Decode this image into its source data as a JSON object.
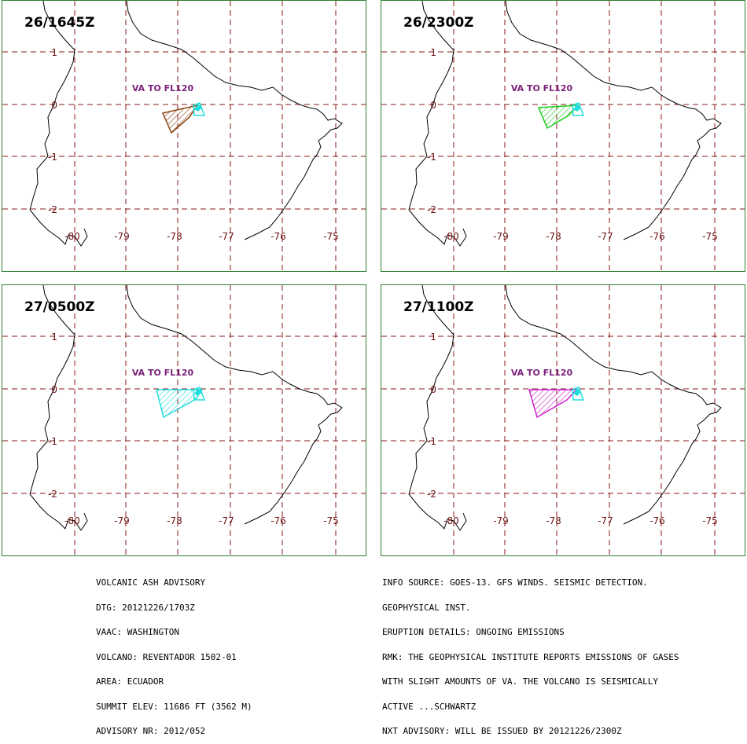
{
  "panels": [
    {
      "title": "26/1645Z",
      "ash_label": "VA TO FL120",
      "ash_color": "#8b4513"
    },
    {
      "title": "26/2300Z",
      "ash_label": "VA TO FL120",
      "ash_color": "#22cc22"
    },
    {
      "title": "27/0500Z",
      "ash_label": "VA TO FL120",
      "ash_color": "#22dddd"
    },
    {
      "title": "27/1100Z",
      "ash_label": "VA TO FL120",
      "ash_color": "#cc22cc"
    }
  ],
  "map": {
    "lat_ticks": [
      "1",
      "0",
      "-1",
      "-2"
    ],
    "lon_ticks": [
      "-80",
      "-79",
      "-78",
      "-77",
      "-76",
      "-75"
    ],
    "grid_color": "#8b1a1a",
    "current_area_color": "#22dddd",
    "coast_color": "#000000"
  },
  "advisory_left": [
    "VOLCANIC ASH ADVISORY",
    "DTG: 20121226/1703Z",
    "VAAC: WASHINGTON",
    "VOLCANO: REVENTADOR 1502-01",
    "AREA: ECUADOR",
    "SUMMIT ELEV: 11686 FT (3562 M)",
    "ADVISORY NR: 2012/052"
  ],
  "advisory_right": [
    "INFO SOURCE: GOES-13. GFS WINDS. SEISMIC DETECTION.",
    "GEOPHYSICAL INST.",
    "ERUPTION DETAILS: ONGOING EMISSIONS",
    "RMK: THE GEOPHYSICAL INSTITUTE REPORTS EMISSIONS OF GASES",
    "WITH SLIGHT AMOUNTS OF VA. THE VOLCANO IS SEISMICALLY",
    "ACTIVE ...SCHWARTZ",
    "NXT ADVISORY: WILL BE ISSUED BY 20121226/2300Z"
  ]
}
